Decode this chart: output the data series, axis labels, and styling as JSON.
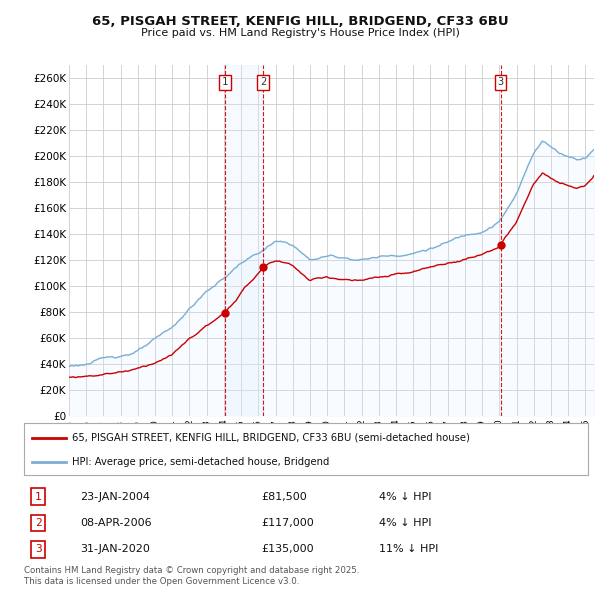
{
  "title": "65, PISGAH STREET, KENFIG HILL, BRIDGEND, CF33 6BU",
  "subtitle": "Price paid vs. HM Land Registry's House Price Index (HPI)",
  "ylim": [
    0,
    270000
  ],
  "yticks": [
    0,
    20000,
    40000,
    60000,
    80000,
    100000,
    120000,
    140000,
    160000,
    180000,
    200000,
    220000,
    240000,
    260000
  ],
  "line1_color": "#cc0000",
  "line2_color": "#7aafd4",
  "line2_fill_color": "#ddeeff",
  "vline_color": "#cc0000",
  "shade_color": "#ddeeff",
  "grid_color": "#cccccc",
  "background_color": "#ffffff",
  "legend_line1": "65, PISGAH STREET, KENFIG HILL, BRIDGEND, CF33 6BU (semi-detached house)",
  "legend_line2": "HPI: Average price, semi-detached house, Bridgend",
  "transactions": [
    {
      "num": 1,
      "date": "23-JAN-2004",
      "price": 81500,
      "pct": "4%",
      "dir": "↓",
      "year": 2004.06
    },
    {
      "num": 2,
      "date": "08-APR-2006",
      "price": 117000,
      "pct": "4%",
      "dir": "↓",
      "year": 2006.27
    },
    {
      "num": 3,
      "date": "31-JAN-2020",
      "price": 135000,
      "pct": "11%",
      "dir": "↓",
      "year": 2020.08
    }
  ],
  "footnote": "Contains HM Land Registry data © Crown copyright and database right 2025.\nThis data is licensed under the Open Government Licence v3.0.",
  "xmin": 1995,
  "xmax": 2025.5
}
